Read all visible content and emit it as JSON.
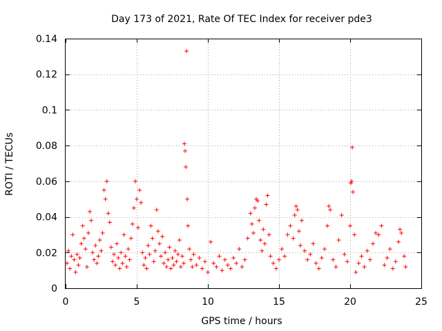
{
  "chart_data": {
    "type": "scatter",
    "title": "Day 173 of 2021, Rate Of TEC Index for receiver pde3",
    "xlabel": "GPS time / hours",
    "ylabel": "ROTI / TECUs",
    "xlim": [
      0,
      25
    ],
    "ylim": [
      0,
      0.14
    ],
    "xticks": [
      0,
      5,
      10,
      15,
      20,
      25
    ],
    "xtick_labels": [
      "0",
      "5",
      "10",
      "15",
      "20",
      "25"
    ],
    "yticks": [
      0,
      0.02,
      0.04,
      0.06,
      0.08,
      0.1,
      0.12,
      0.14
    ],
    "ytick_labels": [
      "0",
      "0.02",
      "0.04",
      "0.06",
      "0.08",
      "0.1",
      "0.12",
      "0.14"
    ],
    "grid": true,
    "marker": "+",
    "color": "#ff0000",
    "series": [
      {
        "name": "ROTI",
        "points": [
          [
            0.1,
            0.014
          ],
          [
            0.2,
            0.021
          ],
          [
            0.3,
            0.011
          ],
          [
            0.4,
            0.018
          ],
          [
            0.5,
            0.03
          ],
          [
            0.6,
            0.016
          ],
          [
            0.7,
            0.009
          ],
          [
            0.8,
            0.019
          ],
          [
            0.9,
            0.013
          ],
          [
            1.0,
            0.017
          ],
          [
            1.1,
            0.025
          ],
          [
            1.2,
            0.035
          ],
          [
            1.3,
            0.028
          ],
          [
            1.4,
            0.022
          ],
          [
            1.5,
            0.012
          ],
          [
            1.6,
            0.031
          ],
          [
            1.7,
            0.043
          ],
          [
            1.8,
            0.038
          ],
          [
            1.9,
            0.02
          ],
          [
            2.0,
            0.016
          ],
          [
            2.1,
            0.024
          ],
          [
            2.2,
            0.014
          ],
          [
            2.3,
            0.018
          ],
          [
            2.4,
            0.027
          ],
          [
            2.5,
            0.021
          ],
          [
            2.6,
            0.031
          ],
          [
            2.7,
            0.055
          ],
          [
            2.8,
            0.05
          ],
          [
            2.9,
            0.06
          ],
          [
            3.0,
            0.042
          ],
          [
            3.1,
            0.037
          ],
          [
            3.2,
            0.023
          ],
          [
            3.3,
            0.015
          ],
          [
            3.4,
            0.019
          ],
          [
            3.5,
            0.013
          ],
          [
            3.6,
            0.025
          ],
          [
            3.7,
            0.017
          ],
          [
            3.8,
            0.011
          ],
          [
            3.9,
            0.02
          ],
          [
            4.0,
            0.014
          ],
          [
            4.1,
            0.03
          ],
          [
            4.2,
            0.018
          ],
          [
            4.3,
            0.012
          ],
          [
            4.4,
            0.022
          ],
          [
            4.5,
            0.016
          ],
          [
            4.6,
            0.028
          ],
          [
            4.7,
            0.036
          ],
          [
            4.8,
            0.045
          ],
          [
            4.9,
            0.06
          ],
          [
            5.0,
            0.05
          ],
          [
            5.1,
            0.034
          ],
          [
            5.2,
            0.055
          ],
          [
            5.3,
            0.048
          ],
          [
            5.4,
            0.02
          ],
          [
            5.5,
            0.013
          ],
          [
            5.6,
            0.017
          ],
          [
            5.7,
            0.011
          ],
          [
            5.8,
            0.024
          ],
          [
            5.9,
            0.019
          ],
          [
            6.0,
            0.035
          ],
          [
            6.1,
            0.028
          ],
          [
            6.2,
            0.015
          ],
          [
            6.3,
            0.021
          ],
          [
            6.4,
            0.044
          ],
          [
            6.5,
            0.032
          ],
          [
            6.6,
            0.025
          ],
          [
            6.7,
            0.018
          ],
          [
            6.8,
            0.029
          ],
          [
            6.9,
            0.014
          ],
          [
            7.0,
            0.02
          ],
          [
            7.1,
            0.012
          ],
          [
            7.2,
            0.016
          ],
          [
            7.3,
            0.023
          ],
          [
            7.4,
            0.011
          ],
          [
            7.5,
            0.017
          ],
          [
            7.6,
            0.013
          ],
          [
            7.7,
            0.021
          ],
          [
            7.8,
            0.015
          ],
          [
            7.9,
            0.019
          ],
          [
            8.0,
            0.027
          ],
          [
            8.1,
            0.012
          ],
          [
            8.2,
            0.018
          ],
          [
            8.3,
            0.014
          ],
          [
            8.35,
            0.081
          ],
          [
            8.4,
            0.077
          ],
          [
            8.45,
            0.068
          ],
          [
            8.5,
            0.133
          ],
          [
            8.55,
            0.05
          ],
          [
            8.6,
            0.035
          ],
          [
            8.7,
            0.022
          ],
          [
            8.8,
            0.016
          ],
          [
            8.9,
            0.012
          ],
          [
            9.0,
            0.019
          ],
          [
            9.2,
            0.013
          ],
          [
            9.4,
            0.017
          ],
          [
            9.6,
            0.011
          ],
          [
            9.8,
            0.015
          ],
          [
            10.0,
            0.009
          ],
          [
            10.2,
            0.026
          ],
          [
            10.4,
            0.014
          ],
          [
            10.6,
            0.012
          ],
          [
            10.8,
            0.018
          ],
          [
            11.0,
            0.01
          ],
          [
            11.2,
            0.016
          ],
          [
            11.4,
            0.013
          ],
          [
            11.6,
            0.011
          ],
          [
            11.8,
            0.017
          ],
          [
            12.0,
            0.014
          ],
          [
            12.2,
            0.022
          ],
          [
            12.4,
            0.012
          ],
          [
            12.6,
            0.016
          ],
          [
            12.8,
            0.028
          ],
          [
            13.0,
            0.042
          ],
          [
            13.1,
            0.036
          ],
          [
            13.2,
            0.031
          ],
          [
            13.3,
            0.045
          ],
          [
            13.4,
            0.05
          ],
          [
            13.5,
            0.049
          ],
          [
            13.6,
            0.038
          ],
          [
            13.7,
            0.027
          ],
          [
            13.8,
            0.021
          ],
          [
            13.9,
            0.033
          ],
          [
            14.0,
            0.025
          ],
          [
            14.1,
            0.047
          ],
          [
            14.2,
            0.052
          ],
          [
            14.3,
            0.03
          ],
          [
            14.4,
            0.018
          ],
          [
            14.6,
            0.014
          ],
          [
            14.8,
            0.011
          ],
          [
            15.0,
            0.016
          ],
          [
            15.2,
            0.022
          ],
          [
            15.4,
            0.018
          ],
          [
            15.6,
            0.03
          ],
          [
            15.8,
            0.035
          ],
          [
            16.0,
            0.028
          ],
          [
            16.1,
            0.041
          ],
          [
            16.2,
            0.046
          ],
          [
            16.3,
            0.044
          ],
          [
            16.4,
            0.032
          ],
          [
            16.5,
            0.024
          ],
          [
            16.6,
            0.038
          ],
          [
            16.8,
            0.021
          ],
          [
            17.0,
            0.016
          ],
          [
            17.2,
            0.019
          ],
          [
            17.4,
            0.025
          ],
          [
            17.6,
            0.014
          ],
          [
            17.8,
            0.011
          ],
          [
            18.0,
            0.017
          ],
          [
            18.2,
            0.022
          ],
          [
            18.4,
            0.035
          ],
          [
            18.5,
            0.046
          ],
          [
            18.6,
            0.044
          ],
          [
            18.8,
            0.016
          ],
          [
            19.0,
            0.012
          ],
          [
            19.2,
            0.027
          ],
          [
            19.4,
            0.041
          ],
          [
            19.6,
            0.019
          ],
          [
            19.8,
            0.015
          ],
          [
            20.0,
            0.035
          ],
          [
            20.05,
            0.059
          ],
          [
            20.1,
            0.06
          ],
          [
            20.15,
            0.079
          ],
          [
            20.2,
            0.054
          ],
          [
            20.3,
            0.03
          ],
          [
            20.4,
            0.009
          ],
          [
            20.6,
            0.014
          ],
          [
            20.8,
            0.018
          ],
          [
            21.0,
            0.012
          ],
          [
            21.2,
            0.021
          ],
          [
            21.4,
            0.016
          ],
          [
            21.6,
            0.025
          ],
          [
            21.8,
            0.031
          ],
          [
            22.0,
            0.03
          ],
          [
            22.2,
            0.035
          ],
          [
            22.4,
            0.013
          ],
          [
            22.6,
            0.017
          ],
          [
            22.8,
            0.022
          ],
          [
            23.0,
            0.011
          ],
          [
            23.2,
            0.015
          ],
          [
            23.4,
            0.026
          ],
          [
            23.5,
            0.033
          ],
          [
            23.6,
            0.031
          ],
          [
            23.8,
            0.018
          ],
          [
            23.9,
            0.012
          ]
        ]
      }
    ]
  }
}
